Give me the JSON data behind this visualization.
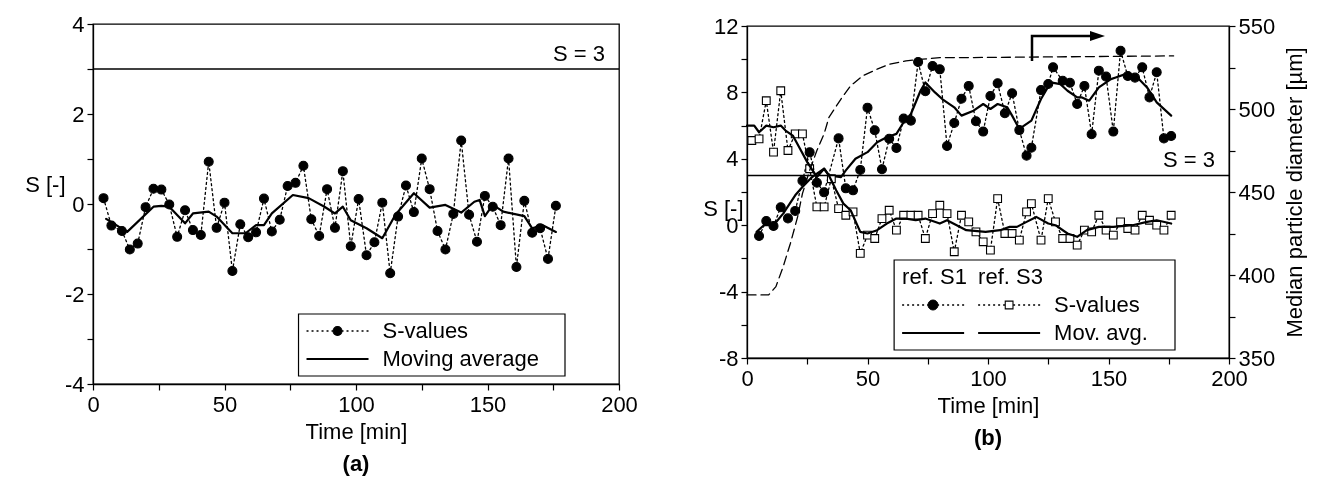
{
  "chart_data": [
    {
      "type": "line",
      "title": "(a)",
      "xlabel": "Time [min]",
      "ylabel": "S [-]",
      "xlim": [
        0,
        200
      ],
      "xticks": [
        0,
        {
          "value": 25,
          "label": null
        },
        50,
        {
          "value": 75,
          "label": null
        },
        100,
        {
          "value": 125,
          "label": null
        },
        150,
        {
          "value": 175,
          "label": null
        },
        200
      ],
      "ylim": [
        -4,
        4
      ],
      "yticks": [
        -4,
        {
          "value": -3,
          "label": null
        },
        -2,
        {
          "value": -1,
          "label": null
        },
        0,
        {
          "value": 1,
          "label": null
        },
        2,
        {
          "value": 3,
          "label": null
        },
        4
      ],
      "ref_lines": [
        {
          "axis": "y",
          "value": 3,
          "label": "S = 3"
        }
      ],
      "legend": "bottom right",
      "series": [
        {
          "name": "S-values",
          "color": "#000000",
          "marker": "circle",
          "line_style": "dotted",
          "x": [
            4,
            7,
            11,
            14,
            17,
            20,
            23,
            26,
            29,
            32,
            35,
            38,
            41,
            44,
            47,
            50,
            53,
            56,
            59,
            62,
            65,
            68,
            71,
            74,
            77,
            80,
            83,
            86,
            89,
            92,
            95,
            98,
            101,
            104,
            107,
            110,
            113,
            116,
            119,
            122,
            125,
            128,
            131,
            134,
            137,
            140,
            143,
            146,
            149,
            152,
            155,
            158,
            161,
            164,
            167,
            170,
            173,
            176
          ],
          "values": [
            0.13,
            -0.48,
            -0.6,
            -1.01,
            -0.88,
            -0.07,
            0.34,
            0.32,
            -0.01,
            -0.73,
            -0.14,
            -0.58,
            -0.69,
            0.94,
            -0.53,
            0.03,
            -1.49,
            -0.45,
            -0.74,
            -0.63,
            0.12,
            -0.61,
            -0.35,
            0.4,
            0.47,
            0.85,
            -0.34,
            -0.71,
            0.33,
            -0.53,
            0.73,
            -0.94,
            0.11,
            -1.14,
            -0.85,
            0.03,
            -1.54,
            -0.28,
            0.41,
            -0.18,
            1.01,
            0.33,
            -0.6,
            -1.01,
            -0.22,
            1.41,
            -0.24,
            -0.84,
            0.18,
            -0.06,
            -0.47,
            1.01,
            -1.4,
            0.07,
            -0.64,
            -0.54,
            -1.22,
            -0.04
          ]
        },
        {
          "name": "Moving average",
          "color": "#000000",
          "marker": "none",
          "line_style": "solid",
          "x": [
            5,
            13,
            23,
            26,
            29,
            35,
            38,
            44,
            47,
            53,
            58,
            62,
            65,
            68,
            76,
            82,
            88,
            92,
            95,
            98,
            104,
            110,
            115,
            122,
            128,
            134,
            140,
            145,
            147,
            149,
            152,
            156,
            164,
            167,
            171,
            176
          ],
          "values": [
            -0.33,
            -0.62,
            -0.06,
            -0.04,
            -0.06,
            -0.43,
            -0.21,
            -0.17,
            -0.28,
            -0.65,
            -0.65,
            -0.47,
            -0.47,
            -0.21,
            0.2,
            0.13,
            -0.06,
            -0.21,
            -0.06,
            -0.36,
            -0.54,
            -0.76,
            -0.24,
            0.24,
            -0.08,
            -0.02,
            -0.19,
            0.05,
            0.09,
            -0.27,
            -0.02,
            -0.17,
            -0.27,
            -0.54,
            -0.47,
            -0.62
          ]
        }
      ]
    },
    {
      "type": "line",
      "title": "(b)",
      "xlabel": "Time [min]",
      "ylabel": "S [-]",
      "y2label": "Median particle diameter [µm]",
      "xlim": [
        0,
        200
      ],
      "xticks": [
        0,
        {
          "value": 25,
          "label": null
        },
        50,
        {
          "value": 75,
          "label": null
        },
        100,
        {
          "value": 125,
          "label": null
        },
        150,
        {
          "value": 175,
          "label": null
        },
        200
      ],
      "ylim": [
        -8,
        12
      ],
      "yticks": [
        -8,
        {
          "value": -6,
          "label": null
        },
        -4,
        {
          "value": -2,
          "label": null
        },
        0,
        {
          "value": 2,
          "label": null
        },
        4,
        {
          "value": 6,
          "label": null
        },
        8,
        {
          "value": 10,
          "label": null
        },
        12
      ],
      "y2lim": [
        350,
        550
      ],
      "y2ticks": [
        350,
        {
          "value": 375,
          "label": null
        },
        400,
        {
          "value": 425,
          "label": null
        },
        450,
        {
          "value": 475,
          "label": null
        },
        500,
        {
          "value": 525,
          "label": null
        },
        550
      ],
      "ref_lines": [
        {
          "axis": "y",
          "value": 3,
          "label": "S = 3"
        }
      ],
      "legend": "bottom right",
      "annotations": [
        "ref. S1",
        "ref. S3"
      ],
      "series": [
        {
          "color": "#000000",
          "marker": "circle",
          "line_style": "dotted",
          "x": [
            5,
            8,
            11,
            14,
            17,
            20,
            23,
            26,
            29,
            32,
            38,
            41,
            44,
            47,
            50,
            53,
            56,
            59,
            62,
            65,
            68,
            71,
            74,
            77,
            80,
            83,
            86,
            89,
            92,
            95,
            98,
            101,
            104,
            107,
            110,
            113,
            116,
            118,
            122,
            125,
            127,
            131,
            134,
            137,
            140,
            143,
            146,
            149,
            152,
            155,
            158,
            161,
            164,
            167,
            170,
            173,
            176
          ],
          "values": [
            -0.65,
            0.25,
            -0.05,
            1.08,
            0.41,
            0.86,
            2.68,
            4.39,
            2.56,
            1.98,
            5.23,
            2.22,
            2.1,
            3.33,
            7.08,
            5.72,
            3.37,
            5.21,
            4.65,
            6.42,
            6.3,
            9.83,
            8.07,
            9.59,
            9.39,
            4.77,
            6.16,
            7.62,
            8.39,
            6.26,
            5.64,
            7.78,
            8.55,
            6.74,
            7.95,
            5.73,
            4.19,
            4.67,
            8.14,
            8.51,
            9.51,
            8.7,
            8.58,
            7.3,
            8.39,
            5.48,
            9.31,
            8.95,
            5.64,
            10.51,
            8.99,
            8.89,
            9.51,
            7.7,
            9.21,
            5.23,
            5.37
          ]
        },
        {
          "color": "#000000",
          "marker": "none",
          "line_style": "solid",
          "x": [
            4,
            7,
            11,
            15,
            20,
            23,
            27,
            29,
            32,
            34,
            39,
            41,
            45,
            50,
            54,
            58,
            62,
            65,
            68,
            72,
            74,
            78,
            81,
            86,
            89,
            94,
            98,
            101,
            104,
            108,
            110,
            113,
            118,
            122,
            126,
            130,
            133,
            137,
            139,
            142,
            146,
            151,
            153,
            157,
            162,
            166,
            170,
            176
          ],
          "values": [
            -0.4,
            0.0,
            0.0,
            0.7,
            1.8,
            2.3,
            2.9,
            3.1,
            3.4,
            3.0,
            2.9,
            3.3,
            4.0,
            4.4,
            5.0,
            5.3,
            5.5,
            6.2,
            6.7,
            8.1,
            8.6,
            8.0,
            7.6,
            7.1,
            6.6,
            6.9,
            7.3,
            7.0,
            7.3,
            7.1,
            6.6,
            5.8,
            6.3,
            7.6,
            8.6,
            8.5,
            8.1,
            7.7,
            7.7,
            7.5,
            8.3,
            8.8,
            8.9,
            9.1,
            8.9,
            8.3,
            7.4,
            6.6
          ]
        },
        {
          "name": "S-values",
          "color": "#000000",
          "marker": "square",
          "line_style": "dotted",
          "x": [
            2,
            5,
            8,
            11,
            14,
            17,
            20,
            23,
            26,
            29,
            32,
            35,
            38,
            41,
            44,
            47,
            50,
            53,
            56,
            59,
            62,
            65,
            68,
            71,
            74,
            77,
            80,
            83,
            86,
            89,
            92,
            95,
            98,
            101,
            104,
            107,
            110,
            113,
            116,
            118,
            122,
            125,
            128,
            131,
            134,
            137,
            140,
            143,
            146,
            149,
            152,
            155,
            158,
            161,
            164,
            167,
            170,
            173,
            176
          ],
          "values": [
            5.1,
            5.2,
            7.5,
            4.4,
            8.1,
            4.5,
            5.5,
            5.5,
            3.4,
            1.1,
            1.1,
            2.8,
            1.0,
            0.6,
            0.8,
            -1.7,
            -0.6,
            -0.8,
            0.4,
            0.9,
            -0.3,
            0.6,
            0.6,
            0.6,
            -0.8,
            0.7,
            1.2,
            0.7,
            -1.6,
            0.6,
            0.2,
            -0.4,
            -1.0,
            -1.5,
            1.6,
            -0.5,
            -0.5,
            -0.9,
            0.8,
            1.3,
            -0.9,
            1.6,
            0.2,
            -0.8,
            -0.8,
            -1.2,
            -0.3,
            -0.4,
            0.6,
            -0.3,
            -0.6,
            0.2,
            -0.2,
            -0.3,
            0.6,
            0.3,
            0.0,
            -0.3,
            0.6
          ]
        },
        {
          "name": "Mov. avg.",
          "color": "#000000",
          "marker": "none",
          "line_style": "solid",
          "x": [
            0,
            3,
            5,
            8,
            11,
            14,
            16,
            19,
            22,
            25,
            29,
            32,
            34,
            37,
            40,
            43,
            47,
            50,
            54,
            58,
            62,
            66,
            70,
            74,
            80,
            83,
            87,
            91,
            99,
            105,
            109,
            112,
            116,
            120,
            125,
            128,
            133,
            137,
            141,
            146,
            152,
            160,
            166,
            170,
            176
          ],
          "values": [
            6.0,
            6.0,
            5.6,
            6.0,
            5.9,
            6.0,
            5.7,
            5.4,
            4.6,
            3.8,
            2.9,
            3.4,
            3.0,
            2.1,
            1.3,
            0.9,
            -0.4,
            -0.5,
            -0.3,
            0.1,
            0.4,
            0.4,
            0.3,
            0.4,
            0.1,
            0.3,
            0.0,
            -0.3,
            -0.4,
            -0.3,
            -0.1,
            -0.1,
            0.2,
            0.5,
            0.1,
            0.0,
            -0.5,
            -0.7,
            -0.3,
            -0.1,
            -0.1,
            0.0,
            0.2,
            0.3,
            0.1
          ]
        },
        {
          "color": "#000000",
          "marker": "none",
          "line_style": "dashed",
          "axis": "y2",
          "x": [
            0,
            5,
            9,
            12,
            15,
            18,
            21,
            23,
            26,
            29,
            32,
            34,
            39,
            43,
            48,
            54,
            59,
            66,
            73,
            80,
            94,
            177
          ],
          "values": [
            388,
            388,
            388,
            393,
            405,
            419,
            435,
            449,
            463,
            475,
            485,
            495,
            506,
            514,
            520,
            524,
            527,
            529,
            530,
            531,
            531,
            532
          ]
        }
      ]
    }
  ]
}
